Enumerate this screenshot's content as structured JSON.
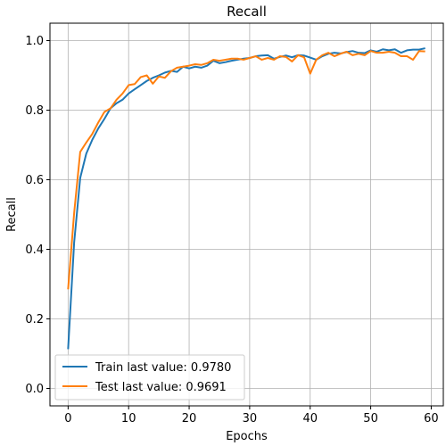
{
  "chart_data": {
    "type": "line",
    "title": "Recall",
    "xlabel": "Epochs",
    "ylabel": "Recall",
    "xlim": [
      -3,
      62
    ],
    "ylim": [
      -0.05,
      1.05
    ],
    "x_ticks": [
      0,
      10,
      20,
      30,
      40,
      50,
      60
    ],
    "y_ticks": [
      0.0,
      0.2,
      0.4,
      0.6,
      0.8,
      1.0
    ],
    "grid": true,
    "legend_position": "lower-left",
    "x": [
      0,
      1,
      2,
      3,
      4,
      5,
      6,
      7,
      8,
      9,
      10,
      11,
      12,
      13,
      14,
      15,
      16,
      17,
      18,
      19,
      20,
      21,
      22,
      23,
      24,
      25,
      26,
      27,
      28,
      29,
      30,
      31,
      32,
      33,
      34,
      35,
      36,
      37,
      38,
      39,
      40,
      41,
      42,
      43,
      44,
      45,
      46,
      47,
      48,
      49,
      50,
      51,
      52,
      53,
      54,
      55,
      56,
      57,
      58,
      59
    ],
    "series": [
      {
        "name": "Train last value: 0.9780",
        "color": "#1f77b4",
        "values": [
          0.113,
          0.42,
          0.605,
          0.675,
          0.715,
          0.748,
          0.775,
          0.805,
          0.82,
          0.83,
          0.848,
          0.86,
          0.872,
          0.884,
          0.893,
          0.9,
          0.908,
          0.913,
          0.91,
          0.925,
          0.92,
          0.925,
          0.922,
          0.928,
          0.942,
          0.935,
          0.938,
          0.942,
          0.945,
          0.948,
          0.95,
          0.955,
          0.957,
          0.958,
          0.948,
          0.953,
          0.957,
          0.952,
          0.958,
          0.957,
          0.951,
          0.945,
          0.955,
          0.962,
          0.965,
          0.963,
          0.967,
          0.97,
          0.965,
          0.964,
          0.972,
          0.968,
          0.975,
          0.972,
          0.975,
          0.965,
          0.972,
          0.974,
          0.974,
          0.978
        ]
      },
      {
        "name": "Test last value: 0.9691",
        "color": "#ff7f0e",
        "values": [
          0.285,
          0.505,
          0.68,
          0.707,
          0.732,
          0.765,
          0.795,
          0.805,
          0.83,
          0.848,
          0.872,
          0.875,
          0.895,
          0.9,
          0.876,
          0.897,
          0.893,
          0.912,
          0.922,
          0.925,
          0.928,
          0.932,
          0.93,
          0.935,
          0.945,
          0.942,
          0.945,
          0.948,
          0.948,
          0.945,
          0.95,
          0.955,
          0.945,
          0.95,
          0.945,
          0.955,
          0.953,
          0.94,
          0.958,
          0.952,
          0.905,
          0.945,
          0.958,
          0.965,
          0.955,
          0.962,
          0.968,
          0.958,
          0.962,
          0.958,
          0.97,
          0.965,
          0.965,
          0.968,
          0.965,
          0.955,
          0.955,
          0.945,
          0.97,
          0.969
        ]
      }
    ]
  }
}
